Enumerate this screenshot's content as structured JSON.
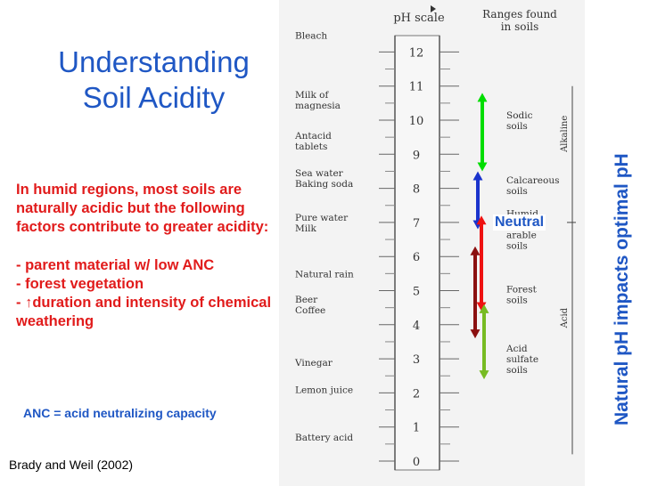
{
  "title": [
    "Understanding",
    "Soil Acidity"
  ],
  "intro": "In humid regions, most soils are naturally acidic but the following factors contribute to greater acidity:",
  "factors": [
    "- parent material w/ low ANC",
    "- forest vegetation",
    "- ↑duration and intensity of chemical weathering"
  ],
  "anc_definition": "ANC = acid neutralizing capacity",
  "citation": "Brady and Weil (2002)",
  "side_title": "Natural pH impacts optimal pH",
  "neutral_label": "Neutral",
  "scale": {
    "header_ph": "pH scale",
    "header_ranges": [
      "Ranges found",
      "in soils"
    ],
    "ph_values": [
      "12",
      "11",
      "10",
      "9",
      "8",
      "7",
      "6",
      "5",
      "4",
      "3",
      "2",
      "1",
      "0"
    ],
    "alkaline_label": "Alkaline",
    "acid_label": "Acid",
    "substances": [
      {
        "lines": [
          "Bleach"
        ]
      },
      {
        "lines": [
          "Milk of",
          "magnesia"
        ]
      },
      {
        "lines": [
          "Antacid",
          "tablets"
        ]
      },
      {
        "lines": [
          "Sea water",
          "Baking soda"
        ]
      },
      {
        "lines": [
          "Pure water",
          "Milk"
        ]
      },
      {
        "lines": [
          "Natural rain"
        ]
      },
      {
        "lines": [
          "Beer",
          "Coffee"
        ]
      },
      {
        "lines": [
          "Vinegar"
        ]
      },
      {
        "lines": [
          "Lemon juice"
        ]
      },
      {
        "lines": [
          "Battery acid"
        ]
      }
    ],
    "soil_ranges": [
      {
        "lines": [
          "Sodic",
          "soils"
        ]
      },
      {
        "lines": [
          "Calcareous",
          "soils"
        ]
      },
      {
        "lines": [
          "Humid",
          "region",
          "arable",
          "soils"
        ]
      },
      {
        "lines": [
          "Forest",
          "soils"
        ]
      },
      {
        "lines": [
          "Acid",
          "sulfate",
          "soils"
        ]
      }
    ]
  },
  "arrows": [
    {
      "color": "#00dd00",
      "from_ph": 10.8,
      "to_ph": 8.5
    },
    {
      "color": "#1a33cc",
      "from_ph": 8.5,
      "to_ph": 6.8
    },
    {
      "color": "#ee1111",
      "from_ph": 7.2,
      "to_ph": 4.4
    },
    {
      "color": "#8b1010",
      "from_ph": 6.3,
      "to_ph": 3.6
    },
    {
      "color": "#77bb22",
      "from_ph": 4.6,
      "to_ph": 2.4
    }
  ]
}
